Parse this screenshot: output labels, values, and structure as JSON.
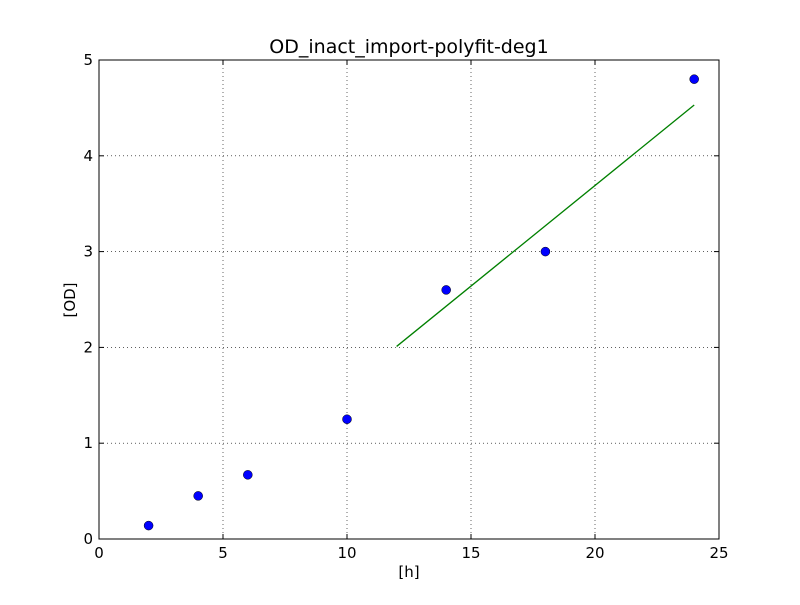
{
  "chart_data": {
    "type": "scatter",
    "title": "OD_inact_import-polyfit-deg1",
    "xlabel": "[h]",
    "ylabel": "[OD]",
    "xlim": [
      0,
      25
    ],
    "ylim": [
      0,
      5
    ],
    "xticks": [
      0,
      5,
      10,
      15,
      20,
      25
    ],
    "xtick_labels": [
      "0",
      "5",
      "10",
      "15",
      "20",
      "25"
    ],
    "yticks": [
      0,
      1,
      2,
      3,
      4,
      5
    ],
    "ytick_labels": [
      "0",
      "1",
      "2",
      "3",
      "4",
      "5"
    ],
    "grid": true,
    "series": [
      {
        "kind": "points",
        "color": "#0000ff",
        "x": [
          2,
          4,
          6,
          10,
          14,
          18,
          24
        ],
        "y": [
          0.14,
          0.45,
          0.67,
          1.25,
          2.6,
          3.0,
          4.8
        ]
      },
      {
        "kind": "line",
        "color": "#008000",
        "x": [
          12,
          24
        ],
        "y": [
          2.01,
          4.53
        ]
      }
    ]
  }
}
